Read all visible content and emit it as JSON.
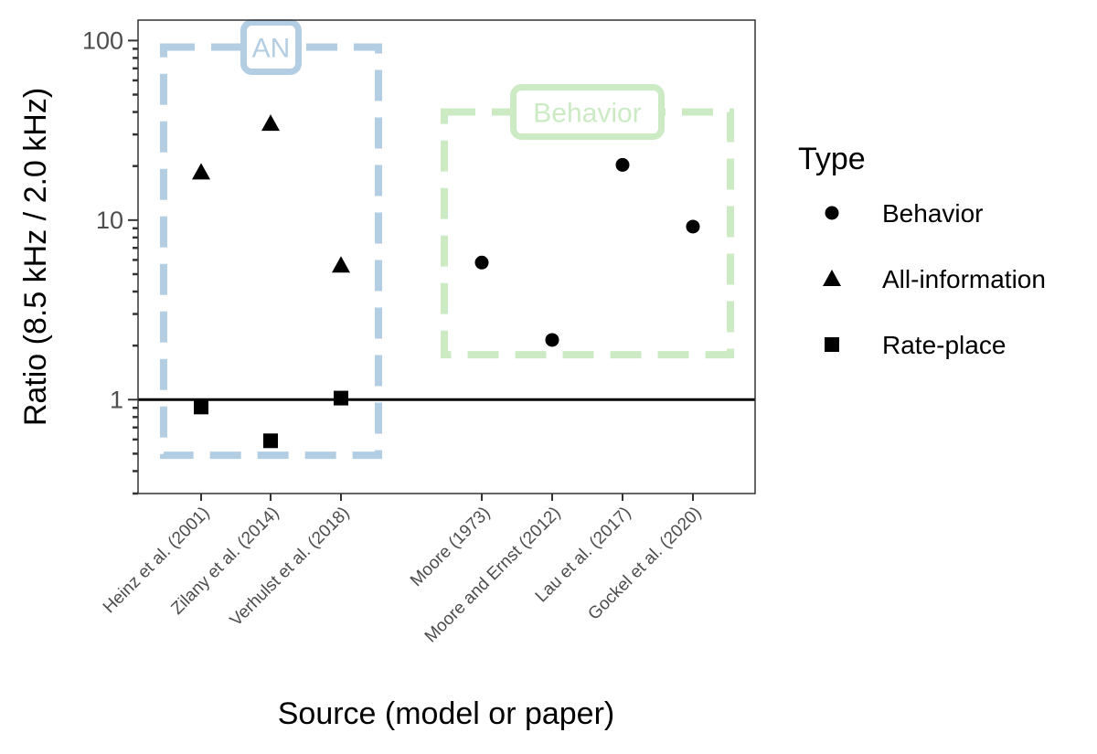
{
  "chart_data": {
    "type": "scatter",
    "xlabel": "Source (model or paper)",
    "ylabel": "Ratio (8.5 kHz / 2.0 kHz)",
    "y_scale": "log10",
    "ylim": [
      0.3,
      130
    ],
    "y_ticks": [
      {
        "value": 1,
        "label": "1"
      },
      {
        "value": 10,
        "label": "10"
      },
      {
        "value": 100,
        "label": "100"
      }
    ],
    "reference_line": {
      "y": 1
    },
    "grid": false,
    "legend": {
      "title": "Type",
      "placement": "right",
      "entries": [
        {
          "label": "Behavior",
          "shape": "circle"
        },
        {
          "label": "All-information",
          "shape": "triangle"
        },
        {
          "label": "Rate-place",
          "shape": "square"
        }
      ]
    },
    "categories": [
      "Heinz et al. (2001)",
      "Zilany et al. (2014)",
      "Verhulst et al. (2018)",
      "Moore (1973)",
      "Moore and Ernst (2012)",
      "Lau et al. (2017)",
      "Gockel et al. (2020)"
    ],
    "series": [
      {
        "name": "Behavior",
        "shape": "circle",
        "points": [
          {
            "x": "Moore (1973)",
            "y": 5.8
          },
          {
            "x": "Moore and Ernst (2012)",
            "y": 2.15
          },
          {
            "x": "Lau et al. (2017)",
            "y": 20.3
          },
          {
            "x": "Gockel et al. (2020)",
            "y": 9.2
          }
        ]
      },
      {
        "name": "All-information",
        "shape": "triangle",
        "points": [
          {
            "x": "Heinz et al. (2001)",
            "y": 18.5
          },
          {
            "x": "Zilany et al. (2014)",
            "y": 34.5
          },
          {
            "x": "Verhulst et al. (2018)",
            "y": 5.6
          }
        ]
      },
      {
        "name": "Rate-place",
        "shape": "square",
        "points": [
          {
            "x": "Heinz et al. (2001)",
            "y": 0.91
          },
          {
            "x": "Zilany et al. (2014)",
            "y": 0.59
          },
          {
            "x": "Verhulst et al. (2018)",
            "y": 1.02
          }
        ]
      }
    ],
    "annotations": [
      {
        "label": "AN",
        "color": "#b3cde3",
        "x_from": "Heinz et al. (2001)",
        "x_to": "Verhulst et al. (2018)",
        "y_range": [
          0.49,
          92
        ]
      },
      {
        "label": "Behavior",
        "color": "#ccebc5",
        "x_from": "Moore (1973)",
        "x_to": "Gockel et al. (2020)",
        "y_range": [
          1.78,
          40
        ]
      }
    ]
  }
}
